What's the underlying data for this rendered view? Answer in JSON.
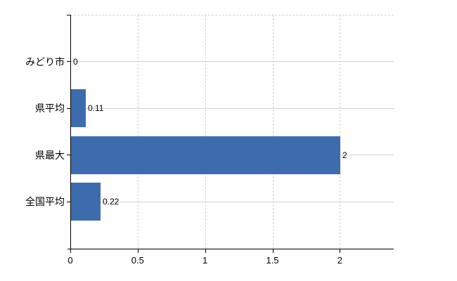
{
  "chart_data": {
    "type": "bar",
    "orientation": "horizontal",
    "title": "",
    "categories": [
      "みどり市",
      "県平均",
      "県最大",
      "全国平均"
    ],
    "values": [
      0,
      0.11,
      2,
      0.22
    ],
    "value_labels": [
      "0",
      "0.11",
      "2",
      "0.22"
    ],
    "xlim": [
      0,
      2.4
    ],
    "xticks": [
      0,
      0.5,
      1,
      1.5,
      2
    ],
    "xtick_labels": [
      "0",
      "0.5",
      "1",
      "1.5",
      "2"
    ],
    "grid": true,
    "legend": false,
    "colors": {
      "bar": "#3d6cae",
      "axis": "#000000",
      "h_grid": "#cdd5cd",
      "v_grid": "#d6d3d6",
      "text": "#000000",
      "background": "#ffffff"
    }
  }
}
